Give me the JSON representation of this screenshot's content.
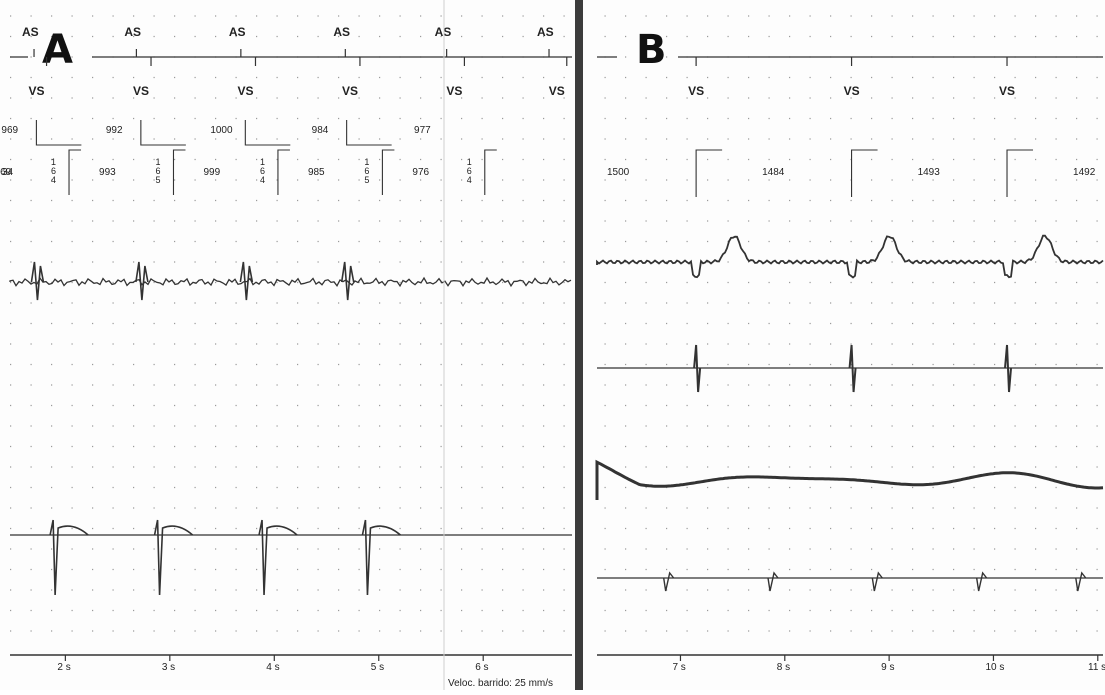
{
  "chart_data": [
    {
      "type": "line",
      "panel_label": "A",
      "marker_labels": {
        "atrial": "AS",
        "ventricular": "VS"
      },
      "atrial_events": [
        {
          "t": 1.7,
          "label": "AS"
        },
        {
          "t": 2.68,
          "label": "AS"
        },
        {
          "t": 3.68,
          "label": "AS"
        },
        {
          "t": 4.68,
          "label": "AS"
        },
        {
          "t": 5.65,
          "label": "AS"
        },
        {
          "t": 6.63,
          "label": "AS"
        }
      ],
      "ventricular_events": [
        {
          "t": 1.82,
          "label": "VS"
        },
        {
          "t": 2.82,
          "label": "VS"
        },
        {
          "t": 3.82,
          "label": "VS"
        },
        {
          "t": 4.82,
          "label": "VS"
        },
        {
          "t": 5.82,
          "label": "VS"
        },
        {
          "t": 6.8,
          "label": "VS"
        }
      ],
      "atrial_intervals": [
        "969",
        "992",
        "1000",
        "984",
        "977"
      ],
      "ventricular_intervals": [
        "969",
        "993",
        "999",
        "985",
        "976"
      ],
      "ventricular_partial_left": "34",
      "av_delays": [
        [
          "1",
          "6",
          "4"
        ],
        [
          "1",
          "6",
          "4"
        ],
        [
          "1",
          "6",
          "5"
        ],
        [
          "1",
          "6",
          "4"
        ],
        [
          "1",
          "6",
          "5"
        ],
        [
          "1",
          "6",
          "4"
        ]
      ],
      "x_ticks": [
        "2 s",
        "3 s",
        "4 s",
        "5 s",
        "6 s"
      ],
      "x_tick_values": [
        2,
        3,
        4,
        5,
        6
      ],
      "xlim": [
        1.47,
        6.85
      ],
      "traces": [
        {
          "id": "atrial-egm",
          "beat_times": [
            1.71,
            2.69,
            3.69,
            4.69,
            5.66
          ]
        },
        {
          "id": "ventricular-egm",
          "beat_times": [
            1.84,
            2.84,
            3.84,
            4.84,
            5.83
          ]
        }
      ],
      "footer": "Veloc. barrido: 25  mm/s"
    },
    {
      "type": "line",
      "panel_label": "B",
      "marker_labels": {
        "ventricular": "VS"
      },
      "ventricular_events": [
        {
          "t": 7.15,
          "label": "VS"
        },
        {
          "t": 8.64,
          "label": "VS"
        },
        {
          "t": 10.13,
          "label": "VS"
        }
      ],
      "ventricular_intervals": [
        "1500",
        "1484",
        "1493",
        "1492"
      ],
      "x_ticks": [
        "7 s",
        "8 s",
        "9 s",
        "10 s",
        "11 s"
      ],
      "x_tick_values": [
        7,
        8,
        9,
        10,
        11
      ],
      "xlim": [
        6.2,
        11.05
      ],
      "traces": [
        {
          "id": "trace-1",
          "beat_times": [
            7.15,
            8.64,
            10.13
          ]
        },
        {
          "id": "trace-2",
          "beat_times": [
            7.15,
            8.64,
            10.13
          ]
        },
        {
          "id": "trace-3",
          "beat_times": []
        },
        {
          "id": "trace-4",
          "beat_times": [
            7.05,
            8.05,
            9.05,
            10.05,
            11.0
          ]
        }
      ]
    }
  ],
  "colors": {
    "trace": "#333333",
    "grid_dot": "#9a9a9a",
    "divider": "#3c3c3c",
    "paper": "#fdfdfd"
  }
}
